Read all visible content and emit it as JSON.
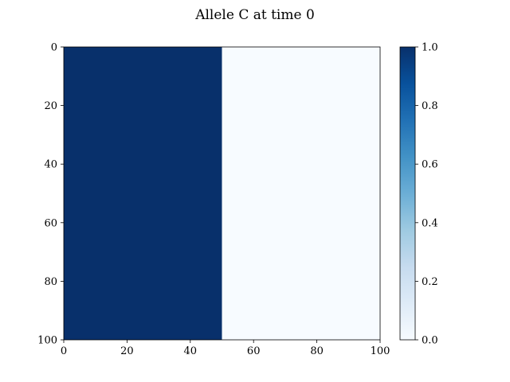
{
  "chart_data": {
    "type": "heatmap",
    "title": "Allele C at time 0",
    "xlabel": "",
    "ylabel": "",
    "xlim": [
      0,
      100
    ],
    "ylim": [
      100,
      0
    ],
    "x_ticks": [
      0,
      20,
      40,
      60,
      80,
      100
    ],
    "y_ticks": [
      0,
      20,
      40,
      60,
      80,
      100
    ],
    "regions": [
      {
        "x_range": [
          0,
          50
        ],
        "y_range": [
          0,
          100
        ],
        "value": 1.0
      },
      {
        "x_range": [
          50,
          100
        ],
        "y_range": [
          0,
          100
        ],
        "value": 0.0
      }
    ],
    "colormap": "Blues",
    "colorbar": {
      "range": [
        0.0,
        1.0
      ],
      "ticks": [
        "0.0",
        "0.2",
        "0.4",
        "0.6",
        "0.8",
        "1.0"
      ],
      "low_color": "#f7fbff",
      "high_color": "#08306b"
    },
    "grid": false
  }
}
